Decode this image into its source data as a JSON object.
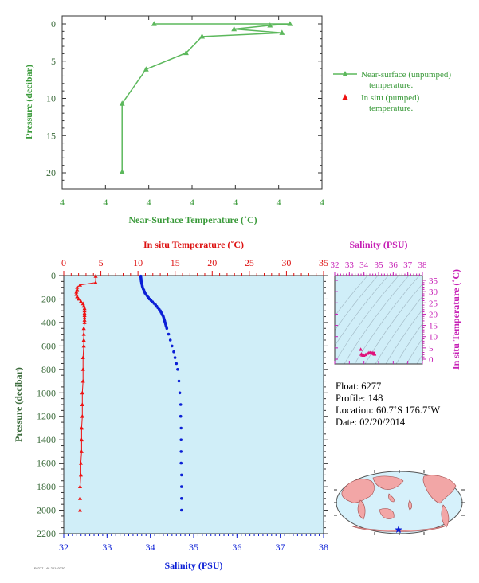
{
  "chart_data": [
    {
      "type": "line",
      "xlabel": "Near-Surface Temperature (˚C)",
      "ylabel": "Pressure (decibar)",
      "x_tick_labels": [
        "4",
        "4",
        "4",
        "4",
        "4",
        "4",
        "4"
      ],
      "y_tick_labels": [
        "0",
        "5",
        "10",
        "15",
        "20"
      ],
      "ylim": [
        0,
        22
      ],
      "y_reversed": true,
      "series": [
        {
          "name": "Near-surface (unpumped) temperature.",
          "x": [
            4.18,
            4.52,
            4.47,
            4.38,
            4.5,
            4.3,
            4.3,
            4.26,
            4.16,
            4.1,
            4.1
          ],
          "y": [
            0.0,
            0.0,
            0.2,
            0.7,
            1.2,
            1.7,
            1.7,
            3.9,
            6.1,
            10.7,
            19.9
          ],
          "color": "#5cb85c"
        },
        {
          "name": "In situ (pumped) temperature.",
          "x": [],
          "y": [],
          "color": "#ee1111"
        }
      ],
      "legend": [
        "Near-surface (unpumped)",
        "temperature.",
        "In situ (pumped)",
        "temperature."
      ]
    },
    {
      "type": "scatter",
      "top_xlabel": "In situ Temperature (˚C)",
      "bottom_xlabel": "Salinity (PSU)",
      "ylabel": "Pressure (decibar)",
      "top_ticks": [
        "0",
        "5",
        "10",
        "15",
        "20",
        "25",
        "30",
        "35"
      ],
      "bottom_ticks": [
        "32",
        "33",
        "34",
        "35",
        "36",
        "37",
        "38"
      ],
      "y_ticks": [
        "0",
        "200",
        "400",
        "600",
        "800",
        "1000",
        "1200",
        "1400",
        "1600",
        "1800",
        "2000",
        "2200"
      ],
      "temp_range": [
        0,
        35
      ],
      "sal_range": [
        32,
        38
      ],
      "ylim": [
        0,
        2200
      ],
      "temperature_profile": {
        "pressure": [
          5,
          60,
          80,
          100,
          120,
          140,
          160,
          180,
          200,
          220,
          240,
          260,
          280,
          300,
          320,
          340,
          360,
          380,
          400,
          450,
          500,
          550,
          600,
          700,
          800,
          900,
          1000,
          1100,
          1200,
          1300,
          1400,
          1500,
          1600,
          1700,
          1800,
          1900,
          2000
        ],
        "temperature": [
          4.3,
          4.3,
          2.2,
          1.8,
          1.8,
          1.7,
          1.7,
          1.8,
          2.0,
          2.3,
          2.6,
          2.7,
          2.8,
          2.8,
          2.8,
          2.8,
          2.8,
          2.8,
          2.8,
          2.7,
          2.7,
          2.7,
          2.7,
          2.6,
          2.6,
          2.6,
          2.5,
          2.5,
          2.5,
          2.4,
          2.4,
          2.4,
          2.3,
          2.3,
          2.2,
          2.2,
          2.2
        ],
        "color": "#ee1111"
      },
      "salinity_profile": {
        "pressure": [
          5,
          50,
          100,
          150,
          200,
          250,
          300,
          350,
          400,
          450,
          500,
          550,
          600,
          650,
          700,
          750,
          800,
          900,
          1000,
          1100,
          1200,
          1300,
          1400,
          1500,
          1600,
          1700,
          1800,
          1900,
          2000
        ],
        "salinity": [
          33.78,
          33.79,
          33.82,
          33.88,
          33.98,
          34.12,
          34.23,
          34.3,
          34.34,
          34.38,
          34.42,
          34.46,
          34.5,
          34.54,
          34.57,
          34.6,
          34.63,
          34.66,
          34.68,
          34.7,
          34.7,
          34.71,
          34.71,
          34.71,
          34.71,
          34.72,
          34.72,
          34.72,
          34.72
        ],
        "color": "#0b1fd6"
      }
    },
    {
      "type": "scatter",
      "xlabel": "Salinity (PSU)",
      "ylabel": "In situ Temperature (˚C)",
      "x_ticks": [
        "32",
        "33",
        "34",
        "35",
        "36",
        "37",
        "38"
      ],
      "y_ticks": [
        "0",
        "5",
        "10",
        "15",
        "20",
        "25",
        "30",
        "35"
      ],
      "xlim": [
        32,
        38
      ],
      "ylim": [
        0,
        35
      ],
      "points": [
        [
          33.78,
          4.3
        ],
        [
          33.82,
          2.2
        ],
        [
          33.88,
          1.8
        ],
        [
          33.98,
          1.7
        ],
        [
          34.12,
          2.0
        ],
        [
          34.23,
          2.6
        ],
        [
          34.34,
          2.8
        ],
        [
          34.42,
          2.8
        ],
        [
          34.5,
          2.7
        ],
        [
          34.57,
          2.7
        ],
        [
          34.63,
          2.6
        ],
        [
          34.68,
          2.5
        ],
        [
          34.7,
          2.5
        ],
        [
          34.71,
          2.4
        ],
        [
          34.72,
          2.3
        ],
        [
          34.72,
          2.2
        ]
      ],
      "color": "#e0107a"
    }
  ],
  "float_info": {
    "float": "Float:  6277",
    "profile": "Profile:  148",
    "location": "Location:  60.7˚S  176.7˚W",
    "date": "Date:  02/20/2014"
  },
  "footer_code": "F6277-148-20140220",
  "map": {
    "marker": "float-location-star",
    "ocean_color": "#d6f1fb",
    "land_color": "#f2a6a6"
  },
  "colors": {
    "green": "#5cb85c",
    "label_green": "#3a9a3a",
    "red": "#ee1111",
    "blue": "#0b1fd6",
    "magenta": "#c61fb5",
    "panel_bg": "#d0eef8"
  }
}
